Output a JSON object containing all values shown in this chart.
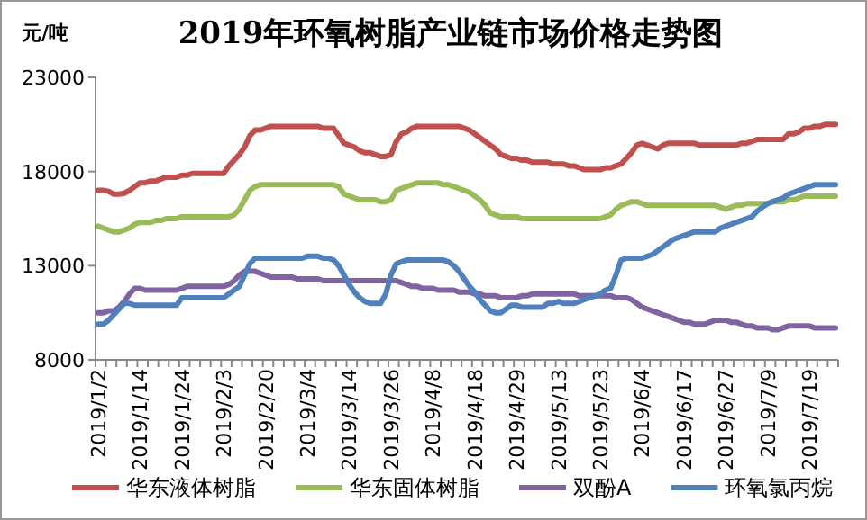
{
  "chart_data": {
    "type": "line",
    "title": "2019年环氧树脂产业链市场价格走势图",
    "ylabel": "元/吨",
    "legend": "bottom",
    "ylim": [
      8000,
      23000
    ],
    "yticks": [
      8000,
      13000,
      18000,
      23000
    ],
    "categories": [
      "2019/1/2",
      null,
      null,
      null,
      null,
      null,
      null,
      null,
      "2019/1/14",
      null,
      null,
      null,
      null,
      null,
      null,
      null,
      "2019/1/24",
      null,
      null,
      null,
      null,
      null,
      null,
      null,
      "2019/2/3",
      null,
      null,
      null,
      null,
      null,
      null,
      null,
      "2019/2/20",
      null,
      null,
      null,
      null,
      null,
      null,
      null,
      "2019/3/4",
      null,
      null,
      null,
      null,
      null,
      null,
      null,
      "2019/3/14",
      null,
      null,
      null,
      null,
      null,
      null,
      null,
      "2019/3/26",
      null,
      null,
      null,
      null,
      null,
      null,
      null,
      "2019/4/8",
      null,
      null,
      null,
      null,
      null,
      null,
      null,
      "2019/4/18",
      null,
      null,
      null,
      null,
      null,
      null,
      null,
      "2019/4/29",
      null,
      null,
      null,
      null,
      null,
      null,
      null,
      "2019/5/13",
      null,
      null,
      null,
      null,
      null,
      null,
      null,
      "2019/5/23",
      null,
      null,
      null,
      null,
      null,
      null,
      null,
      "2019/6/4",
      null,
      null,
      null,
      null,
      null,
      null,
      null,
      "2019/6/17",
      null,
      null,
      null,
      null,
      null,
      null,
      null,
      "2019/6/27",
      null,
      null,
      null,
      null,
      null,
      null,
      null,
      "2019/7/9",
      null,
      null,
      null,
      null,
      null,
      null,
      null,
      "2019/7/19",
      null,
      null,
      null,
      null,
      null
    ],
    "series": [
      {
        "name": "华东液体树脂",
        "color": "#c0504d",
        "values": [
          17000,
          17000,
          16950,
          16800,
          16800,
          16850,
          17000,
          17200,
          17400,
          17400,
          17500,
          17500,
          17600,
          17700,
          17700,
          17700,
          17800,
          17800,
          17900,
          17900,
          17900,
          17900,
          17900,
          17900,
          17900,
          18300,
          18600,
          18900,
          19300,
          19900,
          20200,
          20200,
          20300,
          20400,
          20400,
          20400,
          20400,
          20400,
          20400,
          20400,
          20400,
          20400,
          20400,
          20300,
          20300,
          20300,
          19900,
          19500,
          19400,
          19300,
          19100,
          19000,
          19000,
          18900,
          18800,
          18800,
          18900,
          19600,
          20000,
          20100,
          20300,
          20400,
          20400,
          20400,
          20400,
          20400,
          20400,
          20400,
          20400,
          20400,
          20300,
          20200,
          20000,
          19800,
          19600,
          19400,
          19200,
          18900,
          18800,
          18700,
          18700,
          18600,
          18600,
          18500,
          18500,
          18500,
          18500,
          18400,
          18400,
          18400,
          18300,
          18300,
          18200,
          18100,
          18100,
          18100,
          18100,
          18200,
          18200,
          18300,
          18400,
          18700,
          19000,
          19400,
          19500,
          19400,
          19300,
          19200,
          19400,
          19500,
          19500,
          19500,
          19500,
          19500,
          19500,
          19400,
          19400,
          19400,
          19400,
          19400,
          19400,
          19400,
          19400,
          19500,
          19500,
          19600,
          19700,
          19700,
          19700,
          19700,
          19700,
          19700,
          20000,
          20000,
          20100,
          20300,
          20300,
          20400,
          20400,
          20500,
          20500,
          20500
        ]
      },
      {
        "name": "华东固体树脂",
        "color": "#9bbb59",
        "values": [
          15100,
          15000,
          14900,
          14800,
          14800,
          14900,
          15000,
          15200,
          15300,
          15300,
          15300,
          15400,
          15400,
          15500,
          15500,
          15500,
          15600,
          15600,
          15600,
          15600,
          15600,
          15600,
          15600,
          15600,
          15600,
          15600,
          15700,
          16000,
          16500,
          17000,
          17200,
          17300,
          17300,
          17300,
          17300,
          17300,
          17300,
          17300,
          17300,
          17300,
          17300,
          17300,
          17300,
          17300,
          17300,
          17300,
          17200,
          16800,
          16700,
          16600,
          16500,
          16500,
          16500,
          16500,
          16400,
          16400,
          16500,
          17000,
          17100,
          17200,
          17300,
          17400,
          17400,
          17400,
          17400,
          17400,
          17300,
          17300,
          17200,
          17100,
          17000,
          16900,
          16700,
          16500,
          16200,
          15800,
          15700,
          15600,
          15600,
          15600,
          15600,
          15500,
          15500,
          15500,
          15500,
          15500,
          15500,
          15500,
          15500,
          15500,
          15500,
          15500,
          15500,
          15500,
          15500,
          15500,
          15500,
          15600,
          15700,
          16000,
          16200,
          16300,
          16400,
          16400,
          16300,
          16200,
          16200,
          16200,
          16200,
          16200,
          16200,
          16200,
          16200,
          16200,
          16200,
          16200,
          16200,
          16200,
          16200,
          16100,
          16000,
          16100,
          16200,
          16200,
          16300,
          16300,
          16300,
          16300,
          16300,
          16400,
          16400,
          16400,
          16500,
          16500,
          16600,
          16700,
          16700,
          16700,
          16700,
          16700,
          16700,
          16700
        ]
      },
      {
        "name": "双酚A",
        "color": "#8064a2",
        "values": [
          10500,
          10500,
          10600,
          10600,
          10800,
          11100,
          11500,
          11800,
          11800,
          11700,
          11700,
          11700,
          11700,
          11700,
          11700,
          11700,
          11800,
          11900,
          11900,
          11900,
          11900,
          11900,
          11900,
          11900,
          11900,
          12000,
          12200,
          12500,
          12700,
          12700,
          12700,
          12600,
          12500,
          12400,
          12400,
          12400,
          12400,
          12400,
          12300,
          12300,
          12300,
          12300,
          12300,
          12200,
          12200,
          12200,
          12200,
          12200,
          12200,
          12200,
          12200,
          12200,
          12200,
          12200,
          12200,
          12200,
          12200,
          12200,
          12100,
          12000,
          11900,
          11900,
          11800,
          11800,
          11800,
          11700,
          11700,
          11700,
          11700,
          11600,
          11600,
          11600,
          11500,
          11500,
          11400,
          11400,
          11400,
          11300,
          11300,
          11300,
          11300,
          11400,
          11400,
          11500,
          11500,
          11500,
          11500,
          11500,
          11500,
          11500,
          11500,
          11500,
          11400,
          11400,
          11400,
          11400,
          11400,
          11400,
          11400,
          11300,
          11300,
          11300,
          11200,
          11000,
          10800,
          10700,
          10600,
          10500,
          10400,
          10300,
          10200,
          10100,
          10000,
          10000,
          9900,
          9900,
          9900,
          10000,
          10100,
          10100,
          10100,
          10000,
          10000,
          9900,
          9800,
          9800,
          9700,
          9700,
          9700,
          9600,
          9600,
          9700,
          9800,
          9800,
          9800,
          9800,
          9800,
          9700,
          9700,
          9700,
          9700,
          9700
        ]
      },
      {
        "name": "环氧氯丙烷",
        "color": "#4f81bd",
        "values": [
          9900,
          9900,
          10100,
          10400,
          10700,
          11000,
          11000,
          10900,
          10900,
          10900,
          10900,
          10900,
          10900,
          10900,
          10900,
          10900,
          11300,
          11300,
          11300,
          11300,
          11300,
          11300,
          11300,
          11300,
          11300,
          11500,
          11700,
          11900,
          12500,
          13100,
          13400,
          13400,
          13400,
          13400,
          13400,
          13400,
          13400,
          13400,
          13400,
          13400,
          13500,
          13500,
          13500,
          13400,
          13400,
          13300,
          13000,
          12500,
          12000,
          11600,
          11300,
          11100,
          11000,
          11000,
          11000,
          11500,
          12500,
          13100,
          13200,
          13300,
          13300,
          13300,
          13300,
          13300,
          13300,
          13300,
          13300,
          13200,
          13000,
          12700,
          12300,
          11900,
          11600,
          11200,
          10900,
          10600,
          10500,
          10500,
          10700,
          10900,
          10900,
          10800,
          10800,
          10800,
          10800,
          10800,
          11000,
          11000,
          11100,
          11000,
          11000,
          11000,
          11100,
          11200,
          11300,
          11400,
          11500,
          11700,
          11800,
          12500,
          13300,
          13400,
          13400,
          13400,
          13400,
          13500,
          13600,
          13800,
          14000,
          14200,
          14400,
          14500,
          14600,
          14700,
          14800,
          14800,
          14800,
          14800,
          14800,
          15000,
          15100,
          15200,
          15300,
          15400,
          15500,
          15600,
          15900,
          16100,
          16300,
          16400,
          16500,
          16600,
          16800,
          16900,
          17000,
          17100,
          17200,
          17300,
          17300,
          17300,
          17300,
          17300
        ]
      }
    ]
  }
}
